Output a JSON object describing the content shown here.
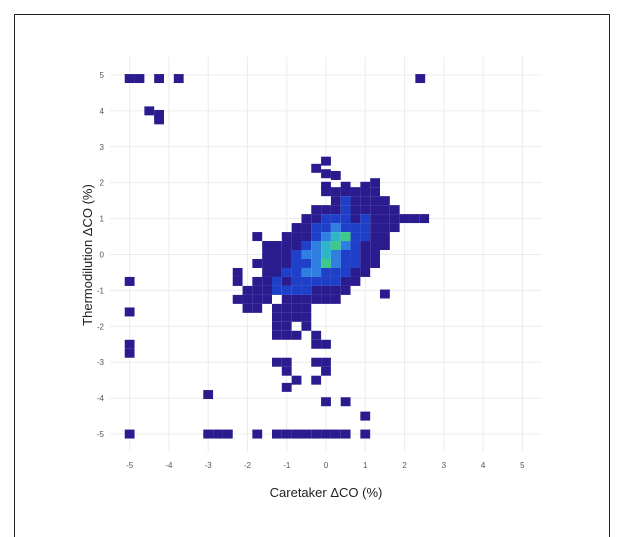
{
  "chart_data": {
    "type": "heatmap",
    "xlabel": "Caretaker ΔCO (%)",
    "ylabel": "Thermodilution ΔCO (%)",
    "xlim": [
      -5.5,
      5.5
    ],
    "ylim": [
      -5.5,
      5.5
    ],
    "xticks": [
      "-5",
      "-4",
      "-3",
      "-2",
      "-1",
      "0",
      "1",
      "2",
      "3",
      "4",
      "5"
    ],
    "yticks": [
      "-5",
      "-4",
      "-3",
      "-2",
      "-1",
      "0",
      "1",
      "2",
      "3",
      "4",
      "5"
    ],
    "grid": true,
    "colormap": [
      "#2a1b8f",
      "#1e3fc8",
      "#2e7fe0",
      "#2fb5c8",
      "#3ec98a",
      "#d8e61e"
    ],
    "bin_size": 0.25,
    "cells": [
      [
        -5,
        4.9,
        1
      ],
      [
        -4.75,
        4.9,
        1
      ],
      [
        -4.25,
        4.9,
        1
      ],
      [
        -3.75,
        4.9,
        1
      ],
      [
        2.4,
        4.9,
        1
      ],
      [
        -4.5,
        4.0,
        1
      ],
      [
        -4.25,
        3.9,
        1
      ],
      [
        -4.25,
        3.75,
        1
      ],
      [
        0,
        2.6,
        1
      ],
      [
        -0.25,
        2.4,
        1
      ],
      [
        0,
        2.25,
        1
      ],
      [
        0.25,
        2.2,
        1
      ],
      [
        1.25,
        2.0,
        1
      ],
      [
        0,
        1.9,
        1
      ],
      [
        0.5,
        1.9,
        1
      ],
      [
        1,
        1.9,
        1
      ],
      [
        0,
        1.75,
        1
      ],
      [
        0.25,
        1.75,
        1
      ],
      [
        0.5,
        1.75,
        1
      ],
      [
        0.75,
        1.75,
        1
      ],
      [
        1,
        1.75,
        1
      ],
      [
        1.25,
        1.75,
        1
      ],
      [
        0.25,
        1.5,
        1
      ],
      [
        0.5,
        1.5,
        2
      ],
      [
        0.75,
        1.5,
        1
      ],
      [
        1,
        1.5,
        1
      ],
      [
        1.25,
        1.5,
        1
      ],
      [
        1.5,
        1.5,
        1
      ],
      [
        -0.25,
        1.25,
        1
      ],
      [
        0,
        1.25,
        1
      ],
      [
        0.25,
        1.25,
        1
      ],
      [
        0.5,
        1.25,
        2
      ],
      [
        0.75,
        1.25,
        1
      ],
      [
        1,
        1.25,
        1
      ],
      [
        1.25,
        1.25,
        1
      ],
      [
        1.5,
        1.25,
        1
      ],
      [
        1.75,
        1.25,
        1
      ],
      [
        -0.5,
        1,
        1
      ],
      [
        -0.25,
        1,
        1
      ],
      [
        0,
        1,
        2
      ],
      [
        0.25,
        1,
        2
      ],
      [
        0.5,
        1,
        2
      ],
      [
        0.75,
        1,
        1
      ],
      [
        1,
        1,
        2
      ],
      [
        1.25,
        1,
        1
      ],
      [
        1.5,
        1,
        1
      ],
      [
        1.75,
        1,
        1
      ],
      [
        2,
        1,
        1
      ],
      [
        2.25,
        1,
        1
      ],
      [
        2.5,
        1,
        1
      ],
      [
        -0.75,
        0.75,
        1
      ],
      [
        -0.5,
        0.75,
        1
      ],
      [
        -0.25,
        0.75,
        2
      ],
      [
        0,
        0.75,
        2
      ],
      [
        0.25,
        0.75,
        3
      ],
      [
        0.5,
        0.75,
        2
      ],
      [
        0.75,
        0.75,
        2
      ],
      [
        1,
        0.75,
        2
      ],
      [
        1.25,
        0.75,
        1
      ],
      [
        1.5,
        0.75,
        1
      ],
      [
        1.75,
        0.75,
        1
      ],
      [
        -1.75,
        0.5,
        1
      ],
      [
        -1,
        0.5,
        1
      ],
      [
        -0.75,
        0.5,
        1
      ],
      [
        -0.5,
        0.5,
        1
      ],
      [
        -0.25,
        0.5,
        2
      ],
      [
        0,
        0.5,
        3
      ],
      [
        0.25,
        0.5,
        4
      ],
      [
        0.5,
        0.5,
        5
      ],
      [
        0.75,
        0.5,
        2
      ],
      [
        1,
        0.5,
        2
      ],
      [
        1.25,
        0.5,
        1
      ],
      [
        1.5,
        0.5,
        1
      ],
      [
        -1.5,
        0.25,
        1
      ],
      [
        -1.25,
        0.25,
        1
      ],
      [
        -1,
        0.25,
        1
      ],
      [
        -0.75,
        0.25,
        1
      ],
      [
        -0.5,
        0.25,
        2
      ],
      [
        -0.25,
        0.25,
        3
      ],
      [
        0,
        0.25,
        4
      ],
      [
        0.25,
        0.25,
        5
      ],
      [
        0.5,
        0.25,
        3
      ],
      [
        0.75,
        0.25,
        2
      ],
      [
        1,
        0.25,
        1
      ],
      [
        1.25,
        0.25,
        1
      ],
      [
        1.5,
        0.25,
        1
      ],
      [
        -1.5,
        0,
        1
      ],
      [
        -1.25,
        0,
        1
      ],
      [
        -1,
        0,
        1
      ],
      [
        -0.75,
        0,
        2
      ],
      [
        -0.5,
        0,
        3
      ],
      [
        -0.25,
        0,
        3
      ],
      [
        0,
        0,
        4
      ],
      [
        0.25,
        0,
        3
      ],
      [
        0.5,
        0,
        2
      ],
      [
        0.75,
        0,
        2
      ],
      [
        1,
        0,
        1
      ],
      [
        1.25,
        0,
        1
      ],
      [
        -1.75,
        -0.25,
        1
      ],
      [
        -1.5,
        -0.25,
        1
      ],
      [
        -1.25,
        -0.25,
        1
      ],
      [
        -1,
        -0.25,
        1
      ],
      [
        -0.75,
        -0.25,
        2
      ],
      [
        -0.5,
        -0.25,
        2
      ],
      [
        -0.25,
        -0.25,
        3
      ],
      [
        0,
        -0.25,
        5
      ],
      [
        0.25,
        -0.25,
        3
      ],
      [
        0.5,
        -0.25,
        2
      ],
      [
        0.75,
        -0.25,
        2
      ],
      [
        1,
        -0.25,
        1
      ],
      [
        1.25,
        -0.25,
        1
      ],
      [
        -2.25,
        -0.5,
        1
      ],
      [
        -1.5,
        -0.5,
        1
      ],
      [
        -1.25,
        -0.5,
        1
      ],
      [
        -1,
        -0.5,
        2
      ],
      [
        -0.75,
        -0.5,
        2
      ],
      [
        -0.5,
        -0.5,
        3
      ],
      [
        -0.25,
        -0.5,
        3
      ],
      [
        0,
        -0.5,
        2
      ],
      [
        0.25,
        -0.5,
        2
      ],
      [
        0.5,
        -0.5,
        2
      ],
      [
        0.75,
        -0.5,
        1
      ],
      [
        1,
        -0.5,
        1
      ],
      [
        -2.25,
        -0.75,
        1
      ],
      [
        -1.75,
        -0.75,
        1
      ],
      [
        -1.5,
        -0.75,
        1
      ],
      [
        -1.25,
        -0.75,
        2
      ],
      [
        -1,
        -0.75,
        1
      ],
      [
        -0.75,
        -0.75,
        2
      ],
      [
        -0.5,
        -0.75,
        2
      ],
      [
        -0.25,
        -0.75,
        2
      ],
      [
        0,
        -0.75,
        2
      ],
      [
        0.25,
        -0.75,
        2
      ],
      [
        0.5,
        -0.75,
        1
      ],
      [
        0.75,
        -0.75,
        1
      ],
      [
        -2,
        -1,
        1
      ],
      [
        -1.75,
        -1,
        1
      ],
      [
        -1.5,
        -1,
        1
      ],
      [
        -1.25,
        -1,
        2
      ],
      [
        -1,
        -1,
        2
      ],
      [
        -0.75,
        -1,
        2
      ],
      [
        -0.5,
        -1,
        2
      ],
      [
        -0.25,
        -1,
        1
      ],
      [
        0,
        -1,
        1
      ],
      [
        0.25,
        -1,
        1
      ],
      [
        0.5,
        -1,
        1
      ],
      [
        1.5,
        -1.1,
        1
      ],
      [
        -2.25,
        -1.25,
        1
      ],
      [
        -2,
        -1.25,
        1
      ],
      [
        -1.75,
        -1.25,
        1
      ],
      [
        -1.5,
        -1.25,
        1
      ],
      [
        -1,
        -1.25,
        1
      ],
      [
        -0.75,
        -1.25,
        1
      ],
      [
        -0.5,
        -1.25,
        1
      ],
      [
        -0.25,
        -1.25,
        1
      ],
      [
        0,
        -1.25,
        1
      ],
      [
        0.25,
        -1.25,
        1
      ],
      [
        -2,
        -1.5,
        1
      ],
      [
        -1.75,
        -1.5,
        1
      ],
      [
        -1.25,
        -1.5,
        1
      ],
      [
        -1,
        -1.5,
        1
      ],
      [
        -0.75,
        -1.5,
        1
      ],
      [
        -0.5,
        -1.5,
        1
      ],
      [
        -1.25,
        -1.75,
        1
      ],
      [
        -1,
        -1.75,
        1
      ],
      [
        -0.75,
        -1.75,
        1
      ],
      [
        -0.5,
        -1.75,
        1
      ],
      [
        -1.25,
        -2,
        1
      ],
      [
        -1,
        -2,
        1
      ],
      [
        -0.5,
        -2,
        1
      ],
      [
        -1.25,
        -2.25,
        1
      ],
      [
        -1,
        -2.25,
        1
      ],
      [
        -0.75,
        -2.25,
        1
      ],
      [
        -0.25,
        -2.25,
        1
      ],
      [
        -0.25,
        -2.5,
        1
      ],
      [
        0,
        -2.5,
        1
      ],
      [
        -1.25,
        -3,
        1
      ],
      [
        -1,
        -3,
        1
      ],
      [
        -0.25,
        -3,
        1
      ],
      [
        0,
        -3,
        1
      ],
      [
        -1,
        -3.25,
        1
      ],
      [
        0,
        -3.25,
        1
      ],
      [
        -0.75,
        -3.5,
        1
      ],
      [
        -0.25,
        -3.5,
        1
      ],
      [
        -1,
        -3.7,
        1
      ],
      [
        -3,
        -3.9,
        1
      ],
      [
        0,
        -4.1,
        1
      ],
      [
        0.5,
        -4.1,
        1
      ],
      [
        1,
        -4.5,
        1
      ],
      [
        -5,
        -0.75,
        1
      ],
      [
        -5,
        -1.6,
        1
      ],
      [
        -5,
        -2.5,
        1
      ],
      [
        -5,
        -2.75,
        1
      ],
      [
        -5,
        -5,
        1
      ],
      [
        -3,
        -5,
        1
      ],
      [
        -2.75,
        -5,
        1
      ],
      [
        -2.5,
        -5,
        1
      ],
      [
        -1.75,
        -5,
        1
      ],
      [
        -1.25,
        -5,
        1
      ],
      [
        -1,
        -5,
        1
      ],
      [
        -0.75,
        -5,
        1
      ],
      [
        -0.5,
        -5,
        1
      ],
      [
        -0.25,
        -5,
        1
      ],
      [
        0,
        -5,
        1
      ],
      [
        0.25,
        -5,
        1
      ],
      [
        0.5,
        -5,
        1
      ],
      [
        1,
        -5,
        1
      ]
    ]
  }
}
